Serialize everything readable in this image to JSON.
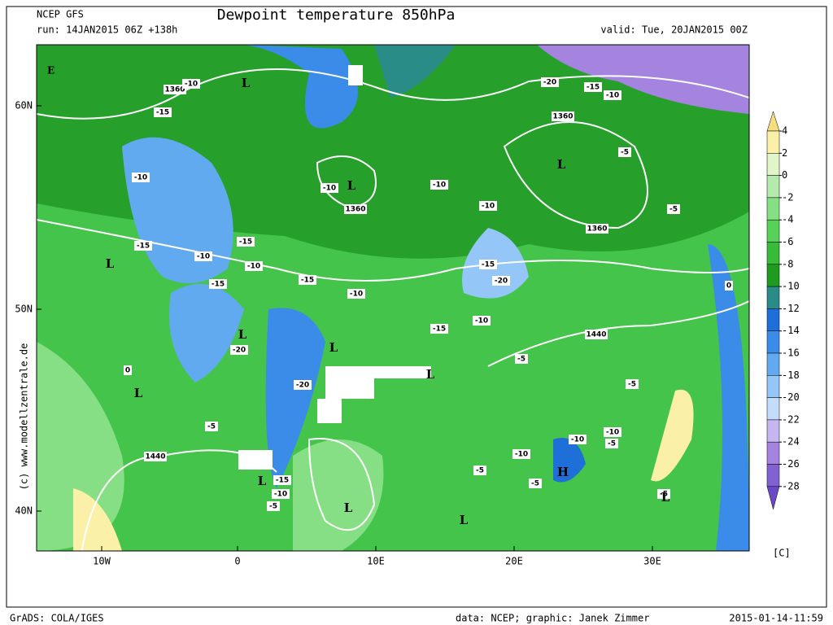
{
  "header": {
    "model": "NCEP GFS",
    "run": "run: 14JAN2015 06Z +138h",
    "title": "Dewpoint temperature 850hPa",
    "valid": "valid: Tue, 20JAN2015 00Z"
  },
  "map": {
    "lat_labels": [
      "60N",
      "50N",
      "40N"
    ],
    "lon_labels": [
      "10W",
      "0",
      "10E",
      "20E",
      "30E"
    ],
    "copyright": "(c) www.modellzentrale.de",
    "corner_label": "E",
    "contour_labels": [
      "1360",
      "1360",
      "1360",
      "1360",
      "1440",
      "1440",
      "-10",
      "-15",
      "-10",
      "-15",
      "-10",
      "-15",
      "-10",
      "-15",
      "-15",
      "-10",
      "-20",
      "-15",
      "-10",
      "-15",
      "-10",
      "-10",
      "-10",
      "-20",
      "-15",
      "-10",
      "-5",
      "-5",
      "-20",
      "-20",
      "-5",
      "-5",
      "-5",
      "-10",
      "-10",
      "-10",
      "-5",
      "-5",
      "-15",
      "-10",
      "-5",
      "-5",
      "0",
      "0",
      "-5"
    ],
    "pressure_centers": [
      "L",
      "L",
      "L",
      "L",
      "L",
      "L",
      "L",
      "L",
      "L",
      "L",
      "L",
      "L",
      "H"
    ]
  },
  "colorbar": {
    "ticks": [
      4,
      2,
      0,
      -2,
      -4,
      -6,
      -8,
      -10,
      -12,
      -14,
      -16,
      -18,
      -20,
      -22,
      -24,
      -26,
      -28
    ],
    "colors": [
      "#fbf0a8",
      "#e0f5c8",
      "#b4ebac",
      "#86df84",
      "#58d158",
      "#38bb38",
      "#1f9c20",
      "#2a8c86",
      "#1f6fd8",
      "#3b8ce8",
      "#62aaf0",
      "#94c6f8",
      "#c2dcfa",
      "#c6b6f0",
      "#a584e0",
      "#8262d2"
    ],
    "over_color": "#f5dd80",
    "under_color": "#6a48c8",
    "unit": "[C]"
  },
  "footer": {
    "software": "GrADS: COLA/IGES",
    "credit": "data: NCEP; graphic: Janek Zimmer",
    "timestamp": "2015-01-14-11:59"
  }
}
